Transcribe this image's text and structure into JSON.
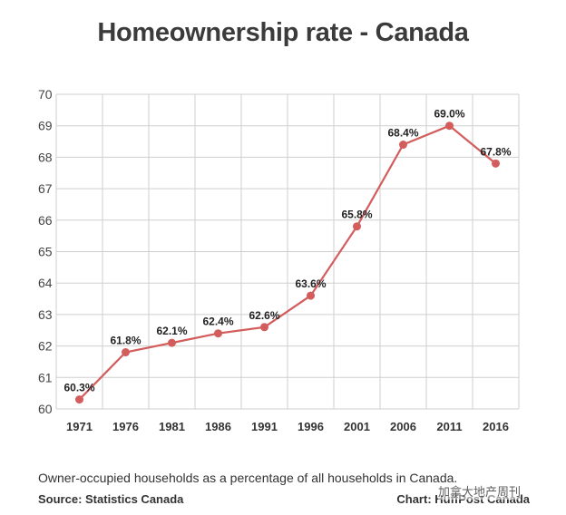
{
  "title": "Homeownership rate - Canada",
  "caption": "Owner-occupied households as a percentage of all households in Canada.",
  "source": "Source: Statistics Canada",
  "credit": "Chart: HuffPost Canada",
  "watermark": "加拿大地产周刊",
  "colors": {
    "line": "#d35c5c",
    "grid": "#cfcfcf",
    "text": "#333333"
  },
  "chart_data": {
    "type": "line",
    "title": "Homeownership rate - Canada",
    "xlabel": "",
    "ylabel": "",
    "categories": [
      "1971",
      "1976",
      "1981",
      "1986",
      "1991",
      "1996",
      "2001",
      "2006",
      "2011",
      "2016"
    ],
    "values": [
      60.3,
      61.8,
      62.1,
      62.4,
      62.6,
      63.6,
      65.8,
      68.4,
      69.0,
      67.8
    ],
    "labels": [
      "60.3%",
      "61.8%",
      "62.1%",
      "62.4%",
      "62.6%",
      "63.6%",
      "65.8%",
      "68.4%",
      "69.0%",
      "67.8%"
    ],
    "yticks": [
      "60",
      "61",
      "62",
      "63",
      "64",
      "65",
      "66",
      "67",
      "68",
      "69",
      "70"
    ],
    "ylim": [
      60,
      70
    ],
    "grid": true,
    "legend": "none"
  }
}
